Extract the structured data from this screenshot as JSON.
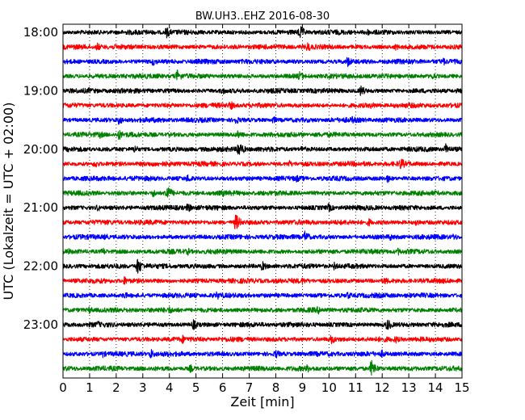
{
  "chart_data": {
    "type": "line",
    "title": "BW.UH3..EHZ 2016-08-30",
    "xlabel": "Zeit  [min]",
    "ylabel": "UTC (Lokalzeit = UTC + 02:00)",
    "xlim": [
      0,
      15
    ],
    "x_ticks": [
      "0",
      "1",
      "2",
      "3",
      "4",
      "5",
      "6",
      "7",
      "8",
      "9",
      "10",
      "11",
      "12",
      "13",
      "14",
      "15"
    ],
    "y_ticks": [
      "18:00",
      "19:00",
      "20:00",
      "21:00",
      "22:00",
      "23:00"
    ],
    "grid": "vertical dotted lines at each minute",
    "traces_per_hour": 4,
    "trace_colors": [
      "#000000",
      "#ff0000",
      "#0000ff",
      "#008000"
    ],
    "series": [
      {
        "start": "18:00",
        "color": "#000000",
        "events": [
          [
            3.9,
            2.0
          ],
          [
            8.9,
            2.6
          ],
          [
            11.4,
            1.6
          ]
        ]
      },
      {
        "start": "18:15",
        "color": "#ff0000",
        "events": [
          [
            1.3,
            1.5
          ],
          [
            9.2,
            1.8
          ],
          [
            12.5,
            1.3
          ]
        ]
      },
      {
        "start": "18:30",
        "color": "#0000ff",
        "events": [
          [
            3.4,
            1.6
          ],
          [
            10.7,
            2.0
          ],
          [
            14.3,
            1.5
          ]
        ]
      },
      {
        "start": "18:45",
        "color": "#008000",
        "events": [
          [
            4.3,
            2.3
          ],
          [
            8.9,
            1.8
          ],
          [
            13.9,
            1.4
          ]
        ]
      },
      {
        "start": "19:00",
        "color": "#000000",
        "events": [
          [
            1.0,
            1.3
          ],
          [
            6.0,
            1.5
          ],
          [
            11.2,
            2.0
          ]
        ]
      },
      {
        "start": "19:15",
        "color": "#ff0000",
        "events": [
          [
            6.3,
            1.7
          ],
          [
            11.6,
            1.4
          ]
        ]
      },
      {
        "start": "19:30",
        "color": "#0000ff",
        "events": [
          [
            2.1,
            1.8
          ],
          [
            6.5,
            1.6
          ],
          [
            7.9,
            1.5
          ],
          [
            10.9,
            1.5
          ]
        ]
      },
      {
        "start": "19:45",
        "color": "#008000",
        "events": [
          [
            1.4,
            1.4
          ],
          [
            2.1,
            2.0
          ],
          [
            6.6,
            1.7
          ]
        ]
      },
      {
        "start": "20:00",
        "color": "#000000",
        "events": [
          [
            2.7,
            1.6
          ],
          [
            6.6,
            3.0
          ],
          [
            9.0,
            1.5
          ],
          [
            14.4,
            2.2
          ]
        ]
      },
      {
        "start": "20:15",
        "color": "#ff0000",
        "events": [
          [
            1.2,
            1.6
          ],
          [
            8.5,
            1.4
          ],
          [
            12.7,
            2.2
          ]
        ]
      },
      {
        "start": "20:30",
        "color": "#0000ff",
        "events": [
          [
            4.7,
            1.7
          ],
          [
            8.8,
            1.4
          ],
          [
            12.2,
            1.5
          ]
        ]
      },
      {
        "start": "20:45",
        "color": "#008000",
        "events": [
          [
            3.4,
            1.5
          ],
          [
            3.9,
            3.0
          ],
          [
            6.0,
            1.4
          ]
        ]
      },
      {
        "start": "21:00",
        "color": "#000000",
        "events": [
          [
            1.3,
            1.4
          ],
          [
            4.7,
            1.8
          ],
          [
            10.0,
            1.6
          ]
        ]
      },
      {
        "start": "21:15",
        "color": "#ff0000",
        "events": [
          [
            6.5,
            3.0
          ],
          [
            11.5,
            1.5
          ],
          [
            13.3,
            1.5
          ]
        ]
      },
      {
        "start": "21:30",
        "color": "#0000ff",
        "events": [
          [
            1.6,
            1.3
          ],
          [
            9.1,
            2.2
          ],
          [
            12.3,
            1.5
          ],
          [
            14.7,
            1.4
          ]
        ]
      },
      {
        "start": "21:45",
        "color": "#008000",
        "events": [
          [
            0.2,
            1.3
          ],
          [
            1.5,
            1.5
          ],
          [
            4.7,
            1.4
          ],
          [
            12.6,
            1.4
          ]
        ]
      },
      {
        "start": "22:00",
        "color": "#000000",
        "events": [
          [
            2.8,
            3.0
          ],
          [
            7.5,
            1.8
          ],
          [
            10.2,
            1.5
          ]
        ]
      },
      {
        "start": "22:15",
        "color": "#ff0000",
        "events": [
          [
            2.3,
            1.7
          ],
          [
            9.0,
            1.4
          ],
          [
            12.1,
            1.5
          ]
        ]
      },
      {
        "start": "22:30",
        "color": "#0000ff",
        "events": [
          [
            2.3,
            1.5
          ],
          [
            5.8,
            1.6
          ],
          [
            10.7,
            1.5
          ]
        ]
      },
      {
        "start": "22:45",
        "color": "#008000",
        "events": [
          [
            1.0,
            1.4
          ],
          [
            4.0,
            1.5
          ],
          [
            9.6,
            1.6
          ]
        ]
      },
      {
        "start": "23:00",
        "color": "#000000",
        "events": [
          [
            1.3,
            1.5
          ],
          [
            4.9,
            2.0
          ],
          [
            12.2,
            2.2
          ]
        ]
      },
      {
        "start": "23:15",
        "color": "#ff0000",
        "events": [
          [
            4.5,
            1.6
          ],
          [
            10.1,
            1.8
          ],
          [
            12.5,
            1.5
          ]
        ]
      },
      {
        "start": "23:30",
        "color": "#0000ff",
        "events": [
          [
            1.5,
            1.4
          ],
          [
            3.3,
            1.9
          ],
          [
            8.0,
            1.7
          ],
          [
            12.0,
            1.5
          ]
        ]
      },
      {
        "start": "23:45",
        "color": "#008000",
        "events": [
          [
            4.8,
            1.5
          ],
          [
            9.2,
            1.5
          ],
          [
            11.6,
            3.0
          ]
        ]
      }
    ]
  }
}
